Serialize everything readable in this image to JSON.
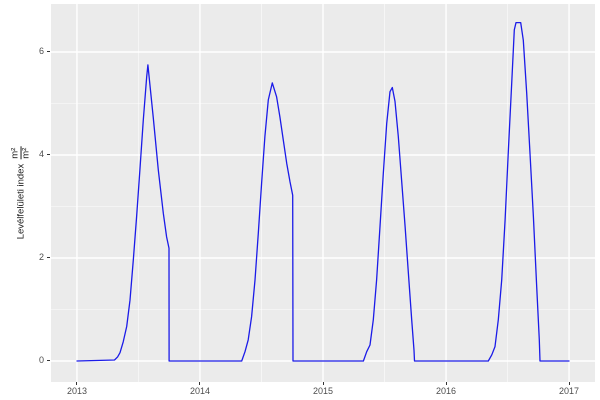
{
  "colors": {
    "panel_background": "#ebebeb",
    "outer_background": "#ffffff",
    "gridline": "#ffffff",
    "line": "#1b1be8",
    "tick_text": "#4d4d4d",
    "tick_mark": "#333333",
    "axis_title_text": "#1a1a1a"
  },
  "y_axis": {
    "title_text": "Levélfelületi index",
    "unit_numerator": "m²",
    "unit_denominator": "m²"
  },
  "chart_data": {
    "type": "line",
    "title": "",
    "xlabel": "",
    "ylabel": "Levélfelületi index m²/m²",
    "legend": "none",
    "grid": {
      "major": true,
      "minor": true
    },
    "x_ticks": [
      2013,
      2014,
      2015,
      2016,
      2017
    ],
    "x_tick_labels": [
      "2013",
      "2014",
      "2015",
      "2016",
      "2017"
    ],
    "y_ticks": [
      0,
      2,
      4,
      6
    ],
    "y_tick_labels": [
      "0",
      "2",
      "4",
      "6"
    ],
    "minor_x": [
      2013.5,
      2014.5,
      2015.5,
      2016.5
    ],
    "minor_y": [
      1,
      3,
      5
    ],
    "xlim": [
      2012.789,
      2017.211
    ],
    "ylim": [
      -0.408,
      6.932
    ],
    "series": [
      {
        "name": "Levélfelületi index",
        "color": "#1b1be8",
        "points": [
          [
            2013.0,
            0
          ],
          [
            2013.305,
            0.02
          ],
          [
            2013.33,
            0.08
          ],
          [
            2013.35,
            0.16
          ],
          [
            2013.376,
            0.37
          ],
          [
            2013.404,
            0.67
          ],
          [
            2013.431,
            1.18
          ],
          [
            2013.458,
            1.96
          ],
          [
            2013.485,
            2.8
          ],
          [
            2013.512,
            3.71
          ],
          [
            2013.539,
            4.68
          ],
          [
            2013.567,
            5.52
          ],
          [
            2013.577,
            5.75
          ],
          [
            2013.62,
            4.74
          ],
          [
            2013.661,
            3.71
          ],
          [
            2013.702,
            2.87
          ],
          [
            2013.729,
            2.41
          ],
          [
            2013.748,
            2.19
          ],
          [
            2013.749,
            0
          ],
          [
            2014.339,
            0
          ],
          [
            2014.366,
            0.18
          ],
          [
            2014.392,
            0.41
          ],
          [
            2014.42,
            0.86
          ],
          [
            2014.447,
            1.57
          ],
          [
            2014.474,
            2.48
          ],
          [
            2014.501,
            3.45
          ],
          [
            2014.528,
            4.36
          ],
          [
            2014.555,
            5.07
          ],
          [
            2014.588,
            5.4
          ],
          [
            2014.623,
            5.13
          ],
          [
            2014.65,
            4.74
          ],
          [
            2014.677,
            4.29
          ],
          [
            2014.705,
            3.84
          ],
          [
            2014.732,
            3.48
          ],
          [
            2014.754,
            3.22
          ],
          [
            2014.756,
            0
          ],
          [
            2015.328,
            0
          ],
          [
            2015.355,
            0.18
          ],
          [
            2015.382,
            0.31
          ],
          [
            2015.409,
            0.8
          ],
          [
            2015.436,
            1.57
          ],
          [
            2015.463,
            2.61
          ],
          [
            2015.49,
            3.64
          ],
          [
            2015.518,
            4.61
          ],
          [
            2015.545,
            5.23
          ],
          [
            2015.563,
            5.31
          ],
          [
            2015.585,
            5.04
          ],
          [
            2015.612,
            4.36
          ],
          [
            2015.639,
            3.51
          ],
          [
            2015.667,
            2.61
          ],
          [
            2015.694,
            1.7
          ],
          [
            2015.721,
            0.8
          ],
          [
            2015.74,
            0.21
          ],
          [
            2015.744,
            0
          ],
          [
            2016.344,
            0
          ],
          [
            2016.372,
            0.12
          ],
          [
            2016.398,
            0.28
          ],
          [
            2016.425,
            0.8
          ],
          [
            2016.453,
            1.57
          ],
          [
            2016.48,
            2.74
          ],
          [
            2016.507,
            4.1
          ],
          [
            2016.534,
            5.39
          ],
          [
            2016.555,
            6.43
          ],
          [
            2016.569,
            6.57
          ],
          [
            2016.607,
            6.57
          ],
          [
            2016.628,
            6.23
          ],
          [
            2016.656,
            5.2
          ],
          [
            2016.683,
            4.03
          ],
          [
            2016.71,
            2.8
          ],
          [
            2016.737,
            1.44
          ],
          [
            2016.758,
            0.41
          ],
          [
            2016.764,
            0
          ],
          [
            2017.0,
            0
          ]
        ]
      }
    ]
  }
}
